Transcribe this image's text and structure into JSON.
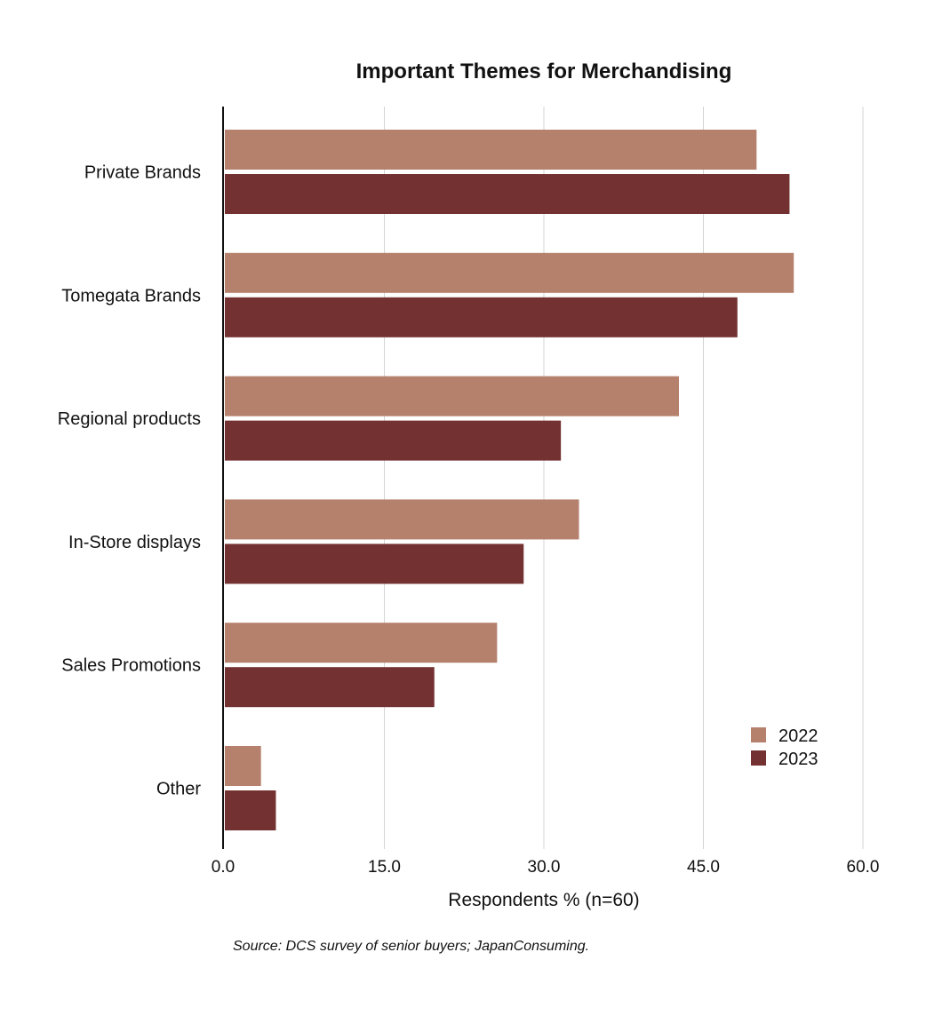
{
  "chart_data": {
    "type": "bar",
    "orientation": "horizontal",
    "title": "Important Themes for Merchandising",
    "xlabel": "Respondents % (n=60)",
    "ylabel": "",
    "xlim": [
      0,
      60
    ],
    "xticks": [
      "0.0",
      "15.0",
      "30.0",
      "45.0",
      "60.0"
    ],
    "categories": [
      "Private Brands",
      "Tomegata Brands",
      "Regional products",
      "In-Store displays",
      "Sales Promotions",
      "Other"
    ],
    "series": [
      {
        "name": "2022",
        "color": "#b5806c",
        "values": [
          50.0,
          53.5,
          42.7,
          33.3,
          25.6,
          3.4
        ]
      },
      {
        "name": "2023",
        "color": "#743131",
        "values": [
          53.1,
          48.2,
          31.6,
          28.1,
          19.7,
          4.8
        ]
      }
    ],
    "grid": "vertical",
    "legend": "bottom-right",
    "source": "Source: DCS survey of senior buyers; JapanConsuming."
  }
}
